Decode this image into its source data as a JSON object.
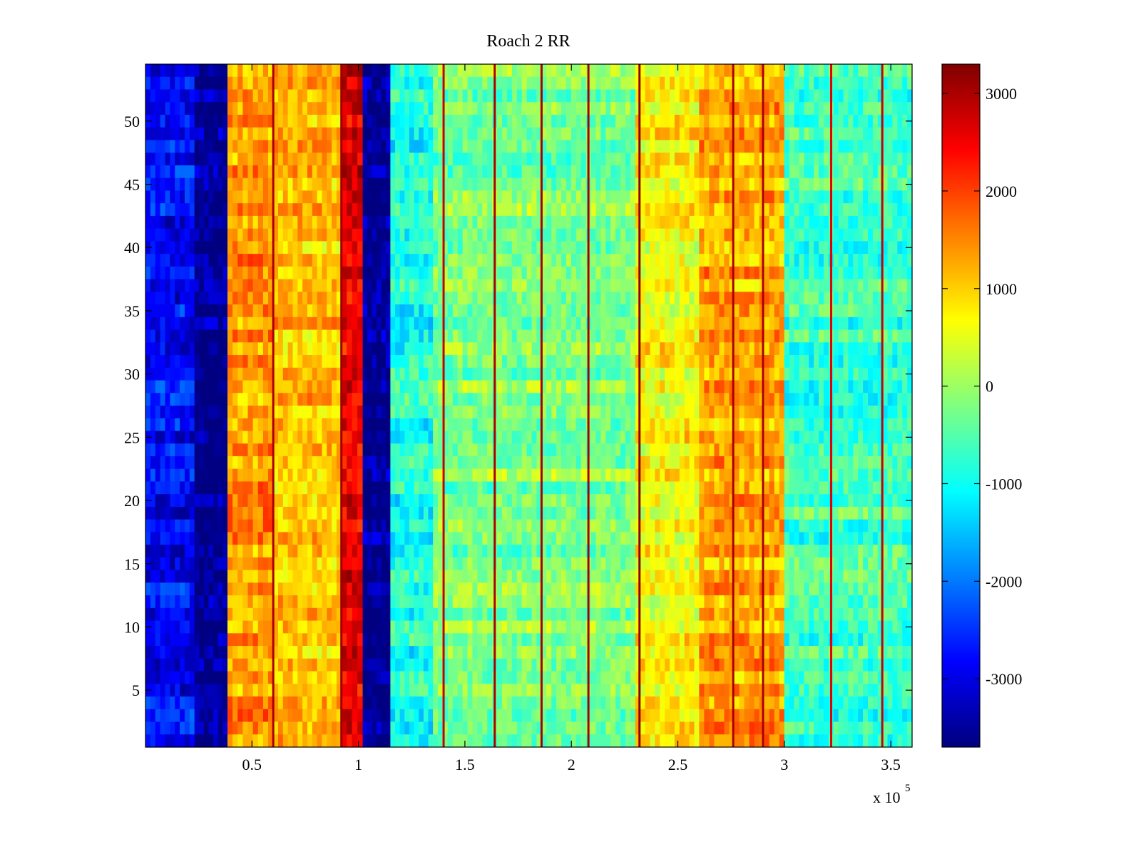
{
  "chart_data": {
    "type": "heatmap",
    "title": "Roach 2 RR",
    "xlabel": "",
    "ylabel": "",
    "x_multiplier_label": "x 10",
    "x_multiplier_exponent": "5",
    "xlim": [
      0,
      360000
    ],
    "ylim": [
      0.5,
      54.5
    ],
    "x_ticks": [
      50000,
      100000,
      150000,
      200000,
      250000,
      300000,
      350000
    ],
    "x_tick_labels": [
      "0.5",
      "1",
      "1.5",
      "2",
      "2.5",
      "3",
      "3.5"
    ],
    "y_ticks": [
      5,
      10,
      15,
      20,
      25,
      30,
      35,
      40,
      45,
      50
    ],
    "y_tick_labels": [
      "5",
      "10",
      "15",
      "20",
      "25",
      "30",
      "35",
      "40",
      "45",
      "50"
    ],
    "colormap": "jet",
    "clim": [
      -3700,
      3300
    ],
    "colorbar_ticks": [
      3000,
      2000,
      1000,
      0,
      -1000,
      -2000,
      -3000
    ],
    "colorbar_tick_labels": [
      "3000",
      "2000",
      "1000",
      "0",
      "-1000",
      "-2000",
      "-3000"
    ],
    "rows": 54,
    "column_bands": [
      {
        "x_start": 0,
        "x_end": 23000,
        "value": -2800
      },
      {
        "x_start": 23000,
        "x_end": 38500,
        "value": -3600
      },
      {
        "x_start": 38500,
        "x_end": 60000,
        "value": 1400
      },
      {
        "x_start": 60000,
        "x_end": 92000,
        "value": 1100
      },
      {
        "x_start": 92000,
        "x_end": 102000,
        "value": 2600
      },
      {
        "x_start": 102000,
        "x_end": 115000,
        "value": -3600
      },
      {
        "x_start": 115000,
        "x_end": 135000,
        "value": -900
      },
      {
        "x_start": 135000,
        "x_end": 230000,
        "value": -200
      },
      {
        "x_start": 230000,
        "x_end": 260000,
        "value": 700
      },
      {
        "x_start": 260000,
        "x_end": 300000,
        "value": 1300
      },
      {
        "x_start": 300000,
        "x_end": 360000,
        "value": -600
      }
    ],
    "vertical_lines": [
      {
        "x": 60000,
        "value": 3000
      },
      {
        "x": 92000,
        "value": 3100
      },
      {
        "x": 140000,
        "value": 2800
      },
      {
        "x": 164000,
        "value": 3000
      },
      {
        "x": 186000,
        "value": 3000
      },
      {
        "x": 208000,
        "value": 3000
      },
      {
        "x": 232000,
        "value": 3200
      },
      {
        "x": 276000,
        "value": 3000
      },
      {
        "x": 290000,
        "value": 3000
      },
      {
        "x": 322000,
        "value": 2600
      },
      {
        "x": 346000,
        "value": 2800
      }
    ]
  }
}
